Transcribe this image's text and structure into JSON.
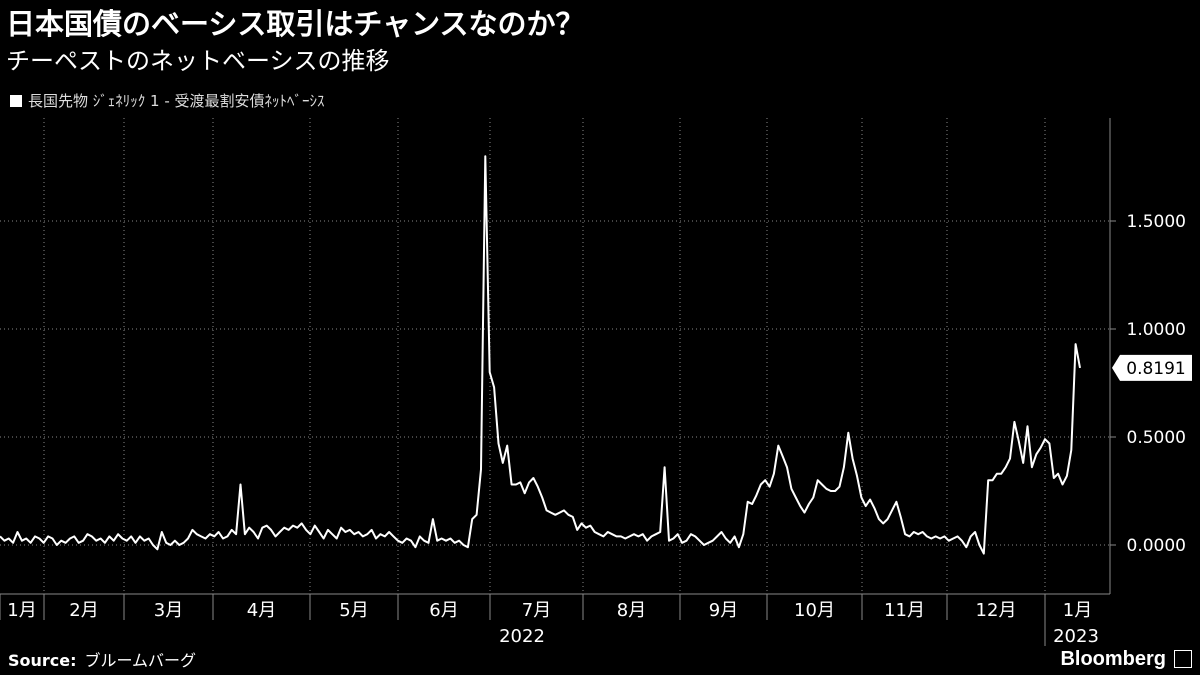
{
  "header": {
    "title": "日本国債のベーシス取引はチャンスなのか？",
    "subtitle": "チーペストのネットベーシスの推移"
  },
  "legend": {
    "label": "長国先物 ｼﾞｪﾈﾘｯｸ 1 - 受渡最割安債ﾈｯﾄﾍﾞｰｼｽ"
  },
  "footer": {
    "source_label": "Source:",
    "source_value": "ブルームバーグ",
    "brand": "Bloomberg"
  },
  "colors": {
    "background": "#000000",
    "line": "#ffffff",
    "grid": "#888888",
    "text": "#ffffff"
  },
  "chart_data": {
    "type": "line",
    "ylim": [
      -0.2,
      1.95
    ],
    "y_ticks": [
      0.0,
      0.5,
      1.0,
      1.5
    ],
    "y_tick_labels": [
      "0.0000",
      "0.5000",
      "1.0000",
      "1.5000"
    ],
    "y_axis_position": "right",
    "grid": true,
    "legend_position": "top-left",
    "x_month_labels": [
      "1月",
      "2月",
      "3月",
      "4月",
      "5月",
      "6月",
      "7月",
      "8月",
      "9月",
      "10月",
      "11月",
      "12月",
      "1月"
    ],
    "x_year_labels": [
      "2022",
      "2023"
    ],
    "last_value_label": "0.8191",
    "series": [
      {
        "values": [
          0.04,
          0.02,
          0.03,
          0.01,
          0.06,
          0.02,
          0.03,
          0.01,
          0.04,
          0.03,
          0.01,
          0.04,
          0.03,
          0.0,
          0.02,
          0.01,
          0.03,
          0.04,
          0.01,
          0.02,
          0.05,
          0.04,
          0.02,
          0.03,
          0.01,
          0.04,
          0.02,
          0.05,
          0.03,
          0.02,
          0.04,
          0.01,
          0.04,
          0.02,
          0.03,
          0.0,
          -0.02,
          0.06,
          0.01,
          0.0,
          0.02,
          0.0,
          0.01,
          0.03,
          0.07,
          0.05,
          0.04,
          0.03,
          0.05,
          0.04,
          0.06,
          0.03,
          0.04,
          0.07,
          0.05,
          0.28,
          0.05,
          0.08,
          0.06,
          0.03,
          0.08,
          0.09,
          0.07,
          0.04,
          0.06,
          0.08,
          0.07,
          0.09,
          0.08,
          0.1,
          0.07,
          0.05,
          0.09,
          0.06,
          0.03,
          0.07,
          0.05,
          0.03,
          0.08,
          0.06,
          0.07,
          0.05,
          0.06,
          0.04,
          0.05,
          0.07,
          0.03,
          0.05,
          0.04,
          0.06,
          0.04,
          0.02,
          0.01,
          0.03,
          0.02,
          -0.01,
          0.04,
          0.02,
          0.01,
          0.12,
          0.02,
          0.03,
          0.02,
          0.03,
          0.01,
          0.02,
          0.0,
          -0.01,
          0.12,
          0.14,
          0.35,
          1.8,
          0.8,
          0.73,
          0.47,
          0.38,
          0.46,
          0.28,
          0.28,
          0.29,
          0.24,
          0.29,
          0.31,
          0.27,
          0.22,
          0.16,
          0.15,
          0.14,
          0.15,
          0.16,
          0.14,
          0.13,
          0.07,
          0.1,
          0.08,
          0.09,
          0.06,
          0.05,
          0.04,
          0.06,
          0.05,
          0.04,
          0.04,
          0.03,
          0.04,
          0.05,
          0.04,
          0.05,
          0.02,
          0.04,
          0.05,
          0.06,
          0.36,
          0.02,
          0.03,
          0.05,
          0.01,
          0.02,
          0.05,
          0.04,
          0.02,
          0.0,
          0.01,
          0.02,
          0.04,
          0.06,
          0.03,
          0.01,
          0.04,
          -0.01,
          0.05,
          0.2,
          0.19,
          0.23,
          0.28,
          0.3,
          0.27,
          0.33,
          0.46,
          0.41,
          0.36,
          0.26,
          0.22,
          0.18,
          0.15,
          0.19,
          0.22,
          0.3,
          0.28,
          0.26,
          0.25,
          0.25,
          0.27,
          0.36,
          0.52,
          0.4,
          0.32,
          0.22,
          0.18,
          0.21,
          0.17,
          0.12,
          0.1,
          0.12,
          0.16,
          0.2,
          0.13,
          0.05,
          0.04,
          0.06,
          0.05,
          0.06,
          0.04,
          0.03,
          0.04,
          0.03,
          0.04,
          0.02,
          0.03,
          0.04,
          0.02,
          -0.01,
          0.04,
          0.06,
          0.0,
          -0.04,
          0.3,
          0.3,
          0.33,
          0.33,
          0.36,
          0.4,
          0.57,
          0.48,
          0.38,
          0.55,
          0.36,
          0.42,
          0.45,
          0.49,
          0.47,
          0.31,
          0.33,
          0.28,
          0.32,
          0.44,
          0.93,
          0.82
        ]
      }
    ]
  }
}
